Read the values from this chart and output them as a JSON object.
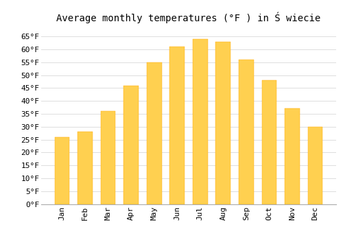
{
  "title": "Average monthly temperatures (°F ) in Ś wiecie",
  "months": [
    "Jan",
    "Feb",
    "Mar",
    "Apr",
    "May",
    "Jun",
    "Jul",
    "Aug",
    "Sep",
    "Oct",
    "Nov",
    "Dec"
  ],
  "values": [
    26,
    28,
    36,
    46,
    55,
    61,
    64,
    63,
    56,
    48,
    37,
    30
  ],
  "bar_color_top": "#FFA500",
  "bar_color_bottom": "#FFD050",
  "background_color": "#FFFFFF",
  "grid_color": "#DDDDDD",
  "ylim": [
    0,
    68
  ],
  "yticks": [
    0,
    5,
    10,
    15,
    20,
    25,
    30,
    35,
    40,
    45,
    50,
    55,
    60,
    65
  ],
  "ylabel_suffix": "°F",
  "title_fontsize": 10,
  "tick_fontsize": 8,
  "font_family": "monospace"
}
